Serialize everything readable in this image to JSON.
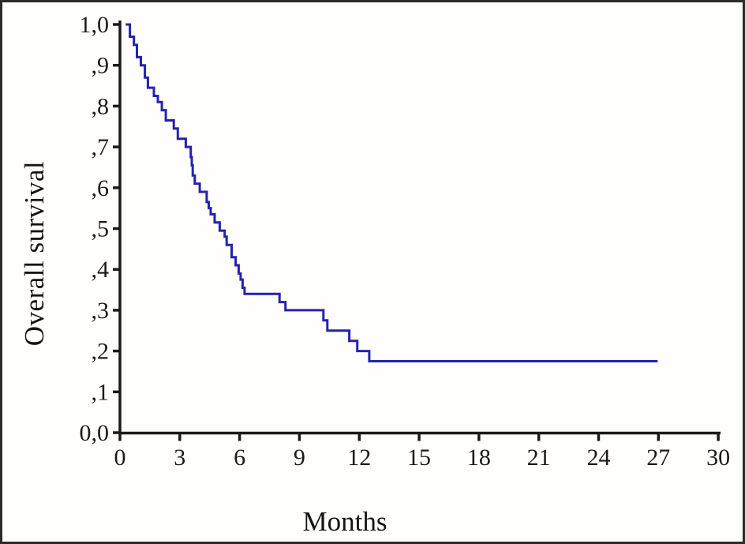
{
  "figure": {
    "ylabel": "Overall survival",
    "xlabel": "Months"
  },
  "colors": {
    "curve": "#2323ad",
    "axis": "#1a1a1a",
    "frame": "#2c2c2c",
    "background": "#ffffff",
    "tick_text": "#1a1a1a"
  },
  "chart_data": {
    "type": "line",
    "subtype": "kaplan-meier-step",
    "title": "",
    "xlabel": "Months",
    "ylabel": "Overall survival",
    "xlim": [
      0,
      30
    ],
    "ylim": [
      0.0,
      1.0
    ],
    "grid": false,
    "legend_position": "none",
    "x_ticks": [
      0,
      3,
      6,
      9,
      12,
      15,
      18,
      21,
      24,
      27,
      30
    ],
    "x_tick_labels": [
      "0",
      "3",
      "6",
      "9",
      "12",
      "15",
      "18",
      "21",
      "24",
      "27",
      "30"
    ],
    "y_ticks": [
      1.0,
      0.9,
      0.8,
      0.7,
      0.6,
      0.5,
      0.4,
      0.3,
      0.2,
      0.1,
      0.0
    ],
    "y_tick_labels": [
      "1,0",
      ",9",
      ",8",
      ",7",
      ",6",
      ",5",
      ",4",
      ",3",
      ",2",
      ",1",
      "0,0"
    ],
    "series": [
      {
        "name": "Overall survival",
        "color": "#2323ad",
        "steps_time_survival": [
          [
            0.35,
            1.0
          ],
          [
            0.5,
            0.97
          ],
          [
            0.7,
            0.95
          ],
          [
            0.85,
            0.92
          ],
          [
            1.05,
            0.9
          ],
          [
            1.25,
            0.87
          ],
          [
            1.4,
            0.845
          ],
          [
            1.7,
            0.825
          ],
          [
            1.9,
            0.81
          ],
          [
            2.1,
            0.79
          ],
          [
            2.3,
            0.765
          ],
          [
            2.7,
            0.745
          ],
          [
            2.9,
            0.72
          ],
          [
            3.3,
            0.7
          ],
          [
            3.55,
            0.675
          ],
          [
            3.6,
            0.655
          ],
          [
            3.65,
            0.63
          ],
          [
            3.75,
            0.61
          ],
          [
            4.0,
            0.59
          ],
          [
            4.35,
            0.565
          ],
          [
            4.45,
            0.55
          ],
          [
            4.55,
            0.535
          ],
          [
            4.75,
            0.515
          ],
          [
            5.0,
            0.495
          ],
          [
            5.25,
            0.48
          ],
          [
            5.35,
            0.46
          ],
          [
            5.6,
            0.43
          ],
          [
            5.8,
            0.41
          ],
          [
            5.95,
            0.39
          ],
          [
            6.05,
            0.375
          ],
          [
            6.15,
            0.355
          ],
          [
            6.25,
            0.34
          ],
          [
            8.0,
            0.32
          ],
          [
            8.3,
            0.3
          ],
          [
            10.2,
            0.275
          ],
          [
            10.4,
            0.25
          ],
          [
            11.5,
            0.225
          ],
          [
            11.9,
            0.2
          ],
          [
            12.5,
            0.175
          ],
          [
            26.9,
            0.175
          ]
        ]
      }
    ]
  }
}
